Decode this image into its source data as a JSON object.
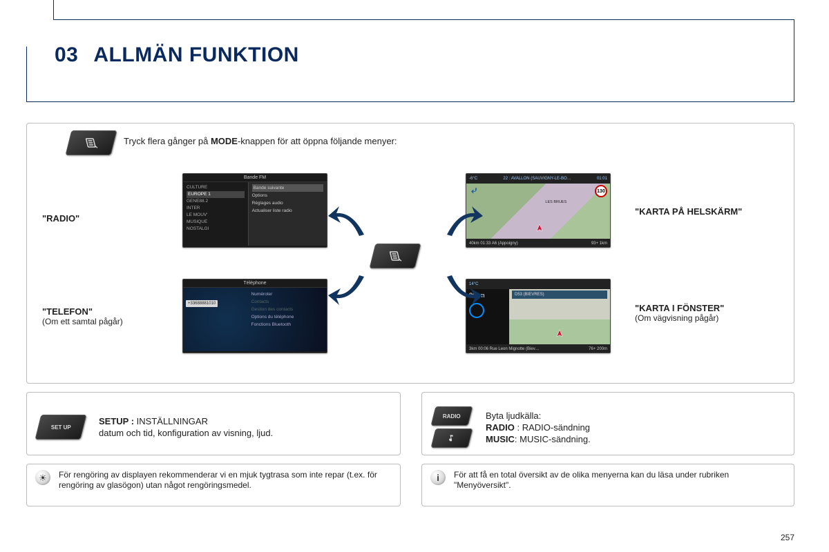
{
  "page_number": "257",
  "colors": {
    "brand_navy": "#0a2a5e",
    "box_border": "#bcbcbc",
    "arrow_fill": "#12355f",
    "key_bg_dark": "#1a1a1a",
    "key_bg_light": "#4a4a4a",
    "map_green": "#9ab58a",
    "map_purple": "#c8b8cc",
    "speed_ring": "#c00000"
  },
  "title": {
    "number": "03",
    "text": "ALLMÄN FUNKTION"
  },
  "intro": {
    "prefix": "Tryck flera gånger på ",
    "bold": "MODE",
    "suffix": "-knappen för att öppna följande menyer:"
  },
  "labels": {
    "radio": "\"RADIO\"",
    "telefon": "\"TELEFON\"",
    "telefon_sub": "(Om ett samtal pågår)",
    "karta_full": "\"KARTA PÅ HELSKÄRM\"",
    "karta_win": "\"KARTA I FÖNSTER\"",
    "karta_win_sub": "(Om vägvisning pågår)"
  },
  "thumb_radio": {
    "header": "Bande FM",
    "left_items": [
      "CULTURE",
      "EUROPE 1",
      "GENE88.2",
      "INTER",
      "LE MOUV'",
      "MUSIQUE",
      "NOSTALGI"
    ],
    "left_selected_index": 1,
    "right_items": [
      "Bande suivante",
      "Options",
      "Réglages audio",
      "Actualiser liste radio"
    ],
    "right_highlight_index": 0
  },
  "thumb_tel": {
    "header": "Téléphone",
    "number": "+33688881010",
    "right_items": [
      "Numéroter",
      "Contacts",
      "Gestion des contacts",
      "Options du téléphone",
      "Fonctions Bluetooth"
    ],
    "greyed": [
      1,
      2
    ]
  },
  "thumb_map1": {
    "top_temp": "-6°C",
    "top_dest": "22 : AVALLON (SAUVIGNY-LE-BO…",
    "top_time": "01:01",
    "speed_limit": "130",
    "town": "LES BRUES",
    "bottom_left": "40km   01:33   A6 (Appoigny)",
    "bottom_right": "93+   1km"
  },
  "thumb_map2": {
    "top_temp": "14°C",
    "side_dist": "800m",
    "banner": "D53 (BIEVRES)",
    "bottom_left": "3km   00:06  Rue Leon Mignotte (Biev…",
    "bottom_right": "76+  200m"
  },
  "feat_setup": {
    "key_label": "SET\nUP",
    "bold": "SETUP :",
    "line1_rest": " INSTÄLLNINGAR",
    "line2": "datum och tid, konfiguration av visning, ljud."
  },
  "feat_source": {
    "radio_key": "RADIO",
    "intro": "Byta ljudkälla:",
    "l1_bold": "RADIO",
    "l1_rest": " : RADIO-sändning",
    "l2_bold": "MUSIC",
    "l2_rest": ":  MUSIC-sändning."
  },
  "note_clean": "För rengöring av displayen rekommenderar vi en mjuk tygtrasa som inte repar (t.ex. för rengöring av glasögon) utan något rengöringsmedel.",
  "note_overview": "För att få en total översikt av de olika menyerna kan du läsa under rubriken \"Menyöversikt\"."
}
